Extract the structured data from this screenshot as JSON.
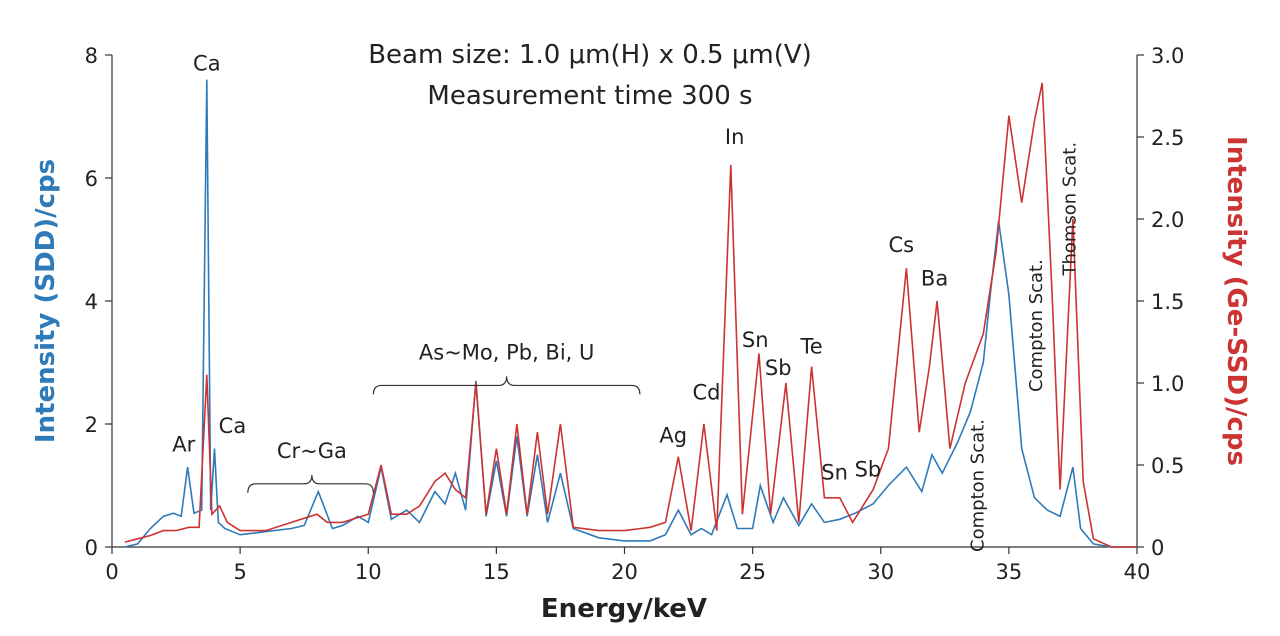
{
  "chart_data": {
    "type": "line",
    "title": [
      "Beam size: 1.0 μm(H) x 0.5 μm(V)",
      "Measurement time 300 s"
    ],
    "xlabel": "Energy/keV",
    "ylabel_left": "Intensity (SDD)/cps",
    "ylabel_right": "Intensity (Ge-SSD)/cps",
    "xlim": [
      0,
      40
    ],
    "ylim_left": [
      0,
      8
    ],
    "ylim_right": [
      0,
      3.0
    ],
    "xticks": [
      "0",
      "5",
      "10",
      "15",
      "20",
      "25",
      "30",
      "35",
      "40"
    ],
    "yticks_left": [
      "0",
      "2",
      "4",
      "6",
      "8"
    ],
    "yticks_right": [
      "0",
      "0.5",
      "1.0",
      "1.5",
      "2.0",
      "2.5",
      "3.0"
    ],
    "colors": {
      "sdd": "#2f7ab9",
      "ge": "#cc3333"
    },
    "series": [
      {
        "name": "SDD",
        "axis": "left",
        "x": [
          0.5,
          1.0,
          1.5,
          2.0,
          2.4,
          2.7,
          2.95,
          3.2,
          3.5,
          3.7,
          3.85,
          4.0,
          4.15,
          4.4,
          5.0,
          6.0,
          7.0,
          7.5,
          8.05,
          8.6,
          9.0,
          9.6,
          10.0,
          10.5,
          10.9,
          11.5,
          12.0,
          12.6,
          13.0,
          13.4,
          13.8,
          14.2,
          14.6,
          15.0,
          15.4,
          15.8,
          16.2,
          16.6,
          17.0,
          17.5,
          18.0,
          19.0,
          20.0,
          21.0,
          21.6,
          22.1,
          22.6,
          23.0,
          23.4,
          24.0,
          24.4,
          25.0,
          25.3,
          25.8,
          26.2,
          26.8,
          27.3,
          27.8,
          28.4,
          29.0,
          29.7,
          30.3,
          31.0,
          31.6,
          32.0,
          32.4,
          33.0,
          33.5,
          34.0,
          34.3,
          34.6,
          35.0,
          35.5,
          36.0,
          36.5,
          37.0,
          37.5,
          37.8,
          38.3,
          39.0,
          40.0
        ],
        "y": [
          0.0,
          0.05,
          0.3,
          0.5,
          0.55,
          0.5,
          1.3,
          0.55,
          0.6,
          7.6,
          0.6,
          1.6,
          0.4,
          0.3,
          0.2,
          0.25,
          0.3,
          0.35,
          0.9,
          0.3,
          0.35,
          0.5,
          0.4,
          1.3,
          0.45,
          0.6,
          0.4,
          0.9,
          0.7,
          1.2,
          0.6,
          2.7,
          0.5,
          1.4,
          0.5,
          1.8,
          0.5,
          1.5,
          0.4,
          1.2,
          0.3,
          0.15,
          0.1,
          0.1,
          0.2,
          0.6,
          0.2,
          0.3,
          0.2,
          0.85,
          0.3,
          0.3,
          1.0,
          0.4,
          0.8,
          0.35,
          0.7,
          0.4,
          0.45,
          0.55,
          0.7,
          1.0,
          1.3,
          0.9,
          1.5,
          1.2,
          1.7,
          2.2,
          3.0,
          4.2,
          5.3,
          4.1,
          1.6,
          0.8,
          0.6,
          0.5,
          1.3,
          0.3,
          0.05,
          0.0,
          0.0
        ]
      },
      {
        "name": "Ge-SSD",
        "axis": "right",
        "x": [
          0.5,
          1.0,
          1.5,
          2.0,
          2.5,
          3.0,
          3.4,
          3.7,
          3.9,
          4.2,
          4.5,
          5.0,
          6.0,
          7.0,
          8.0,
          8.4,
          9.0,
          10.0,
          10.5,
          10.9,
          11.5,
          12.0,
          12.6,
          13.0,
          13.4,
          13.8,
          14.2,
          14.6,
          15.0,
          15.4,
          15.8,
          16.2,
          16.6,
          17.0,
          17.5,
          18.0,
          19.0,
          20.0,
          21.0,
          21.6,
          22.1,
          22.6,
          23.1,
          23.6,
          24.15,
          24.6,
          25.25,
          25.7,
          26.3,
          26.8,
          27.3,
          27.8,
          28.4,
          28.9,
          29.7,
          30.3,
          31.0,
          31.5,
          31.9,
          32.2,
          32.7,
          33.3,
          34.0,
          34.5,
          35.0,
          35.5,
          36.0,
          36.3,
          36.7,
          37.0,
          37.5,
          37.9,
          38.3,
          39.0,
          40.0
        ],
        "y": [
          0.03,
          0.05,
          0.07,
          0.1,
          0.1,
          0.12,
          0.12,
          1.05,
          0.2,
          0.25,
          0.15,
          0.1,
          0.1,
          0.15,
          0.2,
          0.15,
          0.15,
          0.2,
          0.5,
          0.2,
          0.2,
          0.25,
          0.4,
          0.45,
          0.35,
          0.3,
          1.0,
          0.2,
          0.6,
          0.2,
          0.75,
          0.2,
          0.7,
          0.2,
          0.75,
          0.12,
          0.1,
          0.1,
          0.12,
          0.15,
          0.55,
          0.1,
          0.75,
          0.1,
          2.33,
          0.2,
          1.18,
          0.2,
          1.0,
          0.15,
          1.1,
          0.3,
          0.3,
          0.15,
          0.35,
          0.6,
          1.7,
          0.7,
          1.1,
          1.5,
          0.6,
          1.0,
          1.3,
          1.8,
          2.63,
          2.1,
          2.6,
          2.83,
          1.5,
          0.35,
          2.0,
          0.4,
          0.05,
          0.0,
          0.0
        ]
      }
    ],
    "annotations": [
      {
        "text": "Ca",
        "x": 3.7,
        "y": 7.75,
        "axis": "left"
      },
      {
        "text": "Ar",
        "x": 2.8,
        "y": 1.55,
        "axis": "left"
      },
      {
        "text": "Ca",
        "x": 4.7,
        "y": 1.85,
        "axis": "left"
      },
      {
        "text": "Cr~Ga",
        "x": 7.8,
        "y": 1.45,
        "axis": "left",
        "brace": [
          5.3,
          10.2
        ]
      },
      {
        "text": "As~Mo, Pb, Bi, U",
        "x": 15.4,
        "y": 3.05,
        "axis": "left",
        "brace": [
          10.2,
          20.6
        ]
      },
      {
        "text": "Ag",
        "x": 21.9,
        "y": 1.7,
        "axis": "left"
      },
      {
        "text": "Cd",
        "x": 23.2,
        "y": 2.4,
        "axis": "left"
      },
      {
        "text": "In",
        "x": 24.3,
        "y": 6.55,
        "axis": "left"
      },
      {
        "text": "Sn",
        "x": 25.1,
        "y": 3.25,
        "axis": "left"
      },
      {
        "text": "Sb",
        "x": 26.0,
        "y": 2.8,
        "axis": "left"
      },
      {
        "text": "Te",
        "x": 27.3,
        "y": 3.15,
        "axis": "left"
      },
      {
        "text": "Sn",
        "x": 28.2,
        "y": 1.1,
        "axis": "left"
      },
      {
        "text": "Sb",
        "x": 29.5,
        "y": 1.15,
        "axis": "left"
      },
      {
        "text": "Cs",
        "x": 30.8,
        "y": 4.8,
        "axis": "left"
      },
      {
        "text": "Ba",
        "x": 32.1,
        "y": 4.25,
        "axis": "left"
      },
      {
        "text": "Compton Scat.",
        "x": 34.0,
        "y": 1.0,
        "axis": "left",
        "rotate": -90
      },
      {
        "text": "Compton Scat.",
        "x": 36.3,
        "y": 3.6,
        "axis": "left",
        "rotate": -90
      },
      {
        "text": "Thomson Scat.",
        "x": 37.6,
        "y": 5.5,
        "axis": "left",
        "rotate": -90
      }
    ]
  }
}
